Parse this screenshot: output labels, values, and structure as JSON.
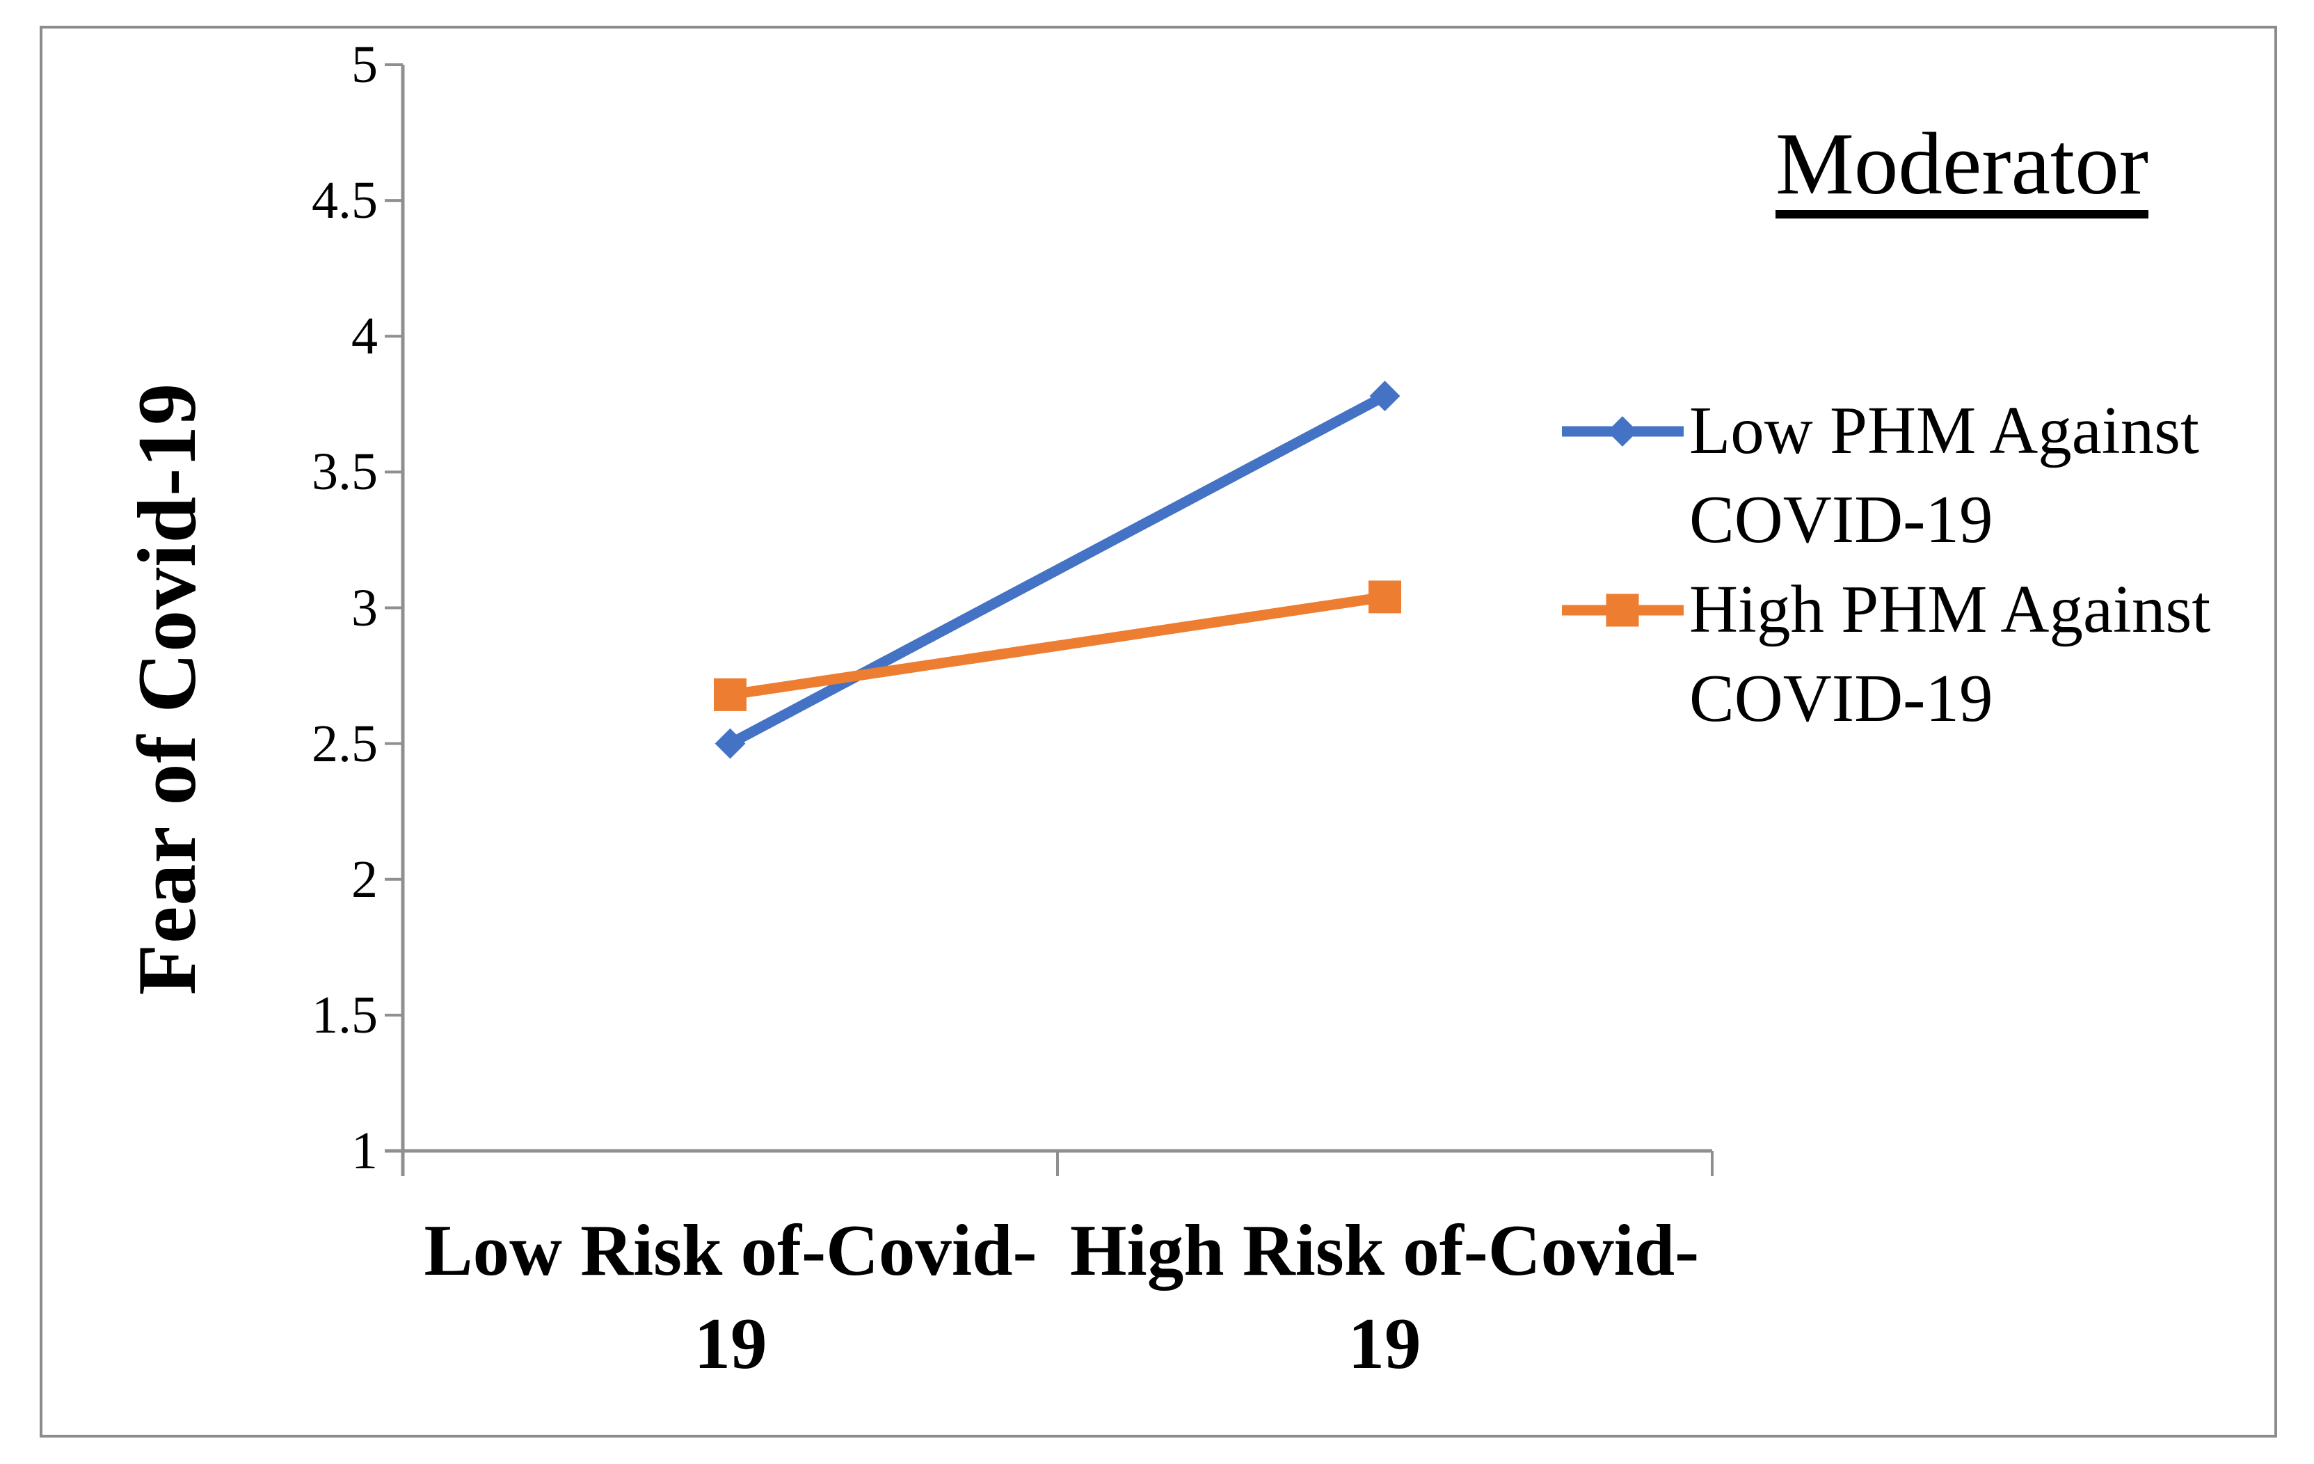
{
  "figure": {
    "background": "#ffffff",
    "border_color": "#8C8C8C"
  },
  "chart_data": {
    "type": "line",
    "legend_title": "Moderator",
    "ylabel": "Fear of Covid-19",
    "xlabel": "",
    "categories": [
      "Low Risk of-Covid-19",
      "High Risk of-Covid-19"
    ],
    "series": [
      {
        "name": "Low PHM Against COVID-19",
        "values": [
          2.5,
          3.78
        ],
        "color": "#4472C4",
        "marker": "diamond"
      },
      {
        "name": "High PHM Against COVID-19",
        "values": [
          2.68,
          3.04
        ],
        "color": "#ED7D31",
        "marker": "square"
      }
    ],
    "ylim": [
      1,
      5
    ],
    "yticks": [
      1,
      1.5,
      2,
      2.5,
      3,
      3.5,
      4,
      4.5,
      5
    ],
    "grid": false,
    "legend_position": "right",
    "axis_color": "#8F8F8F",
    "text_color": "#000000"
  }
}
